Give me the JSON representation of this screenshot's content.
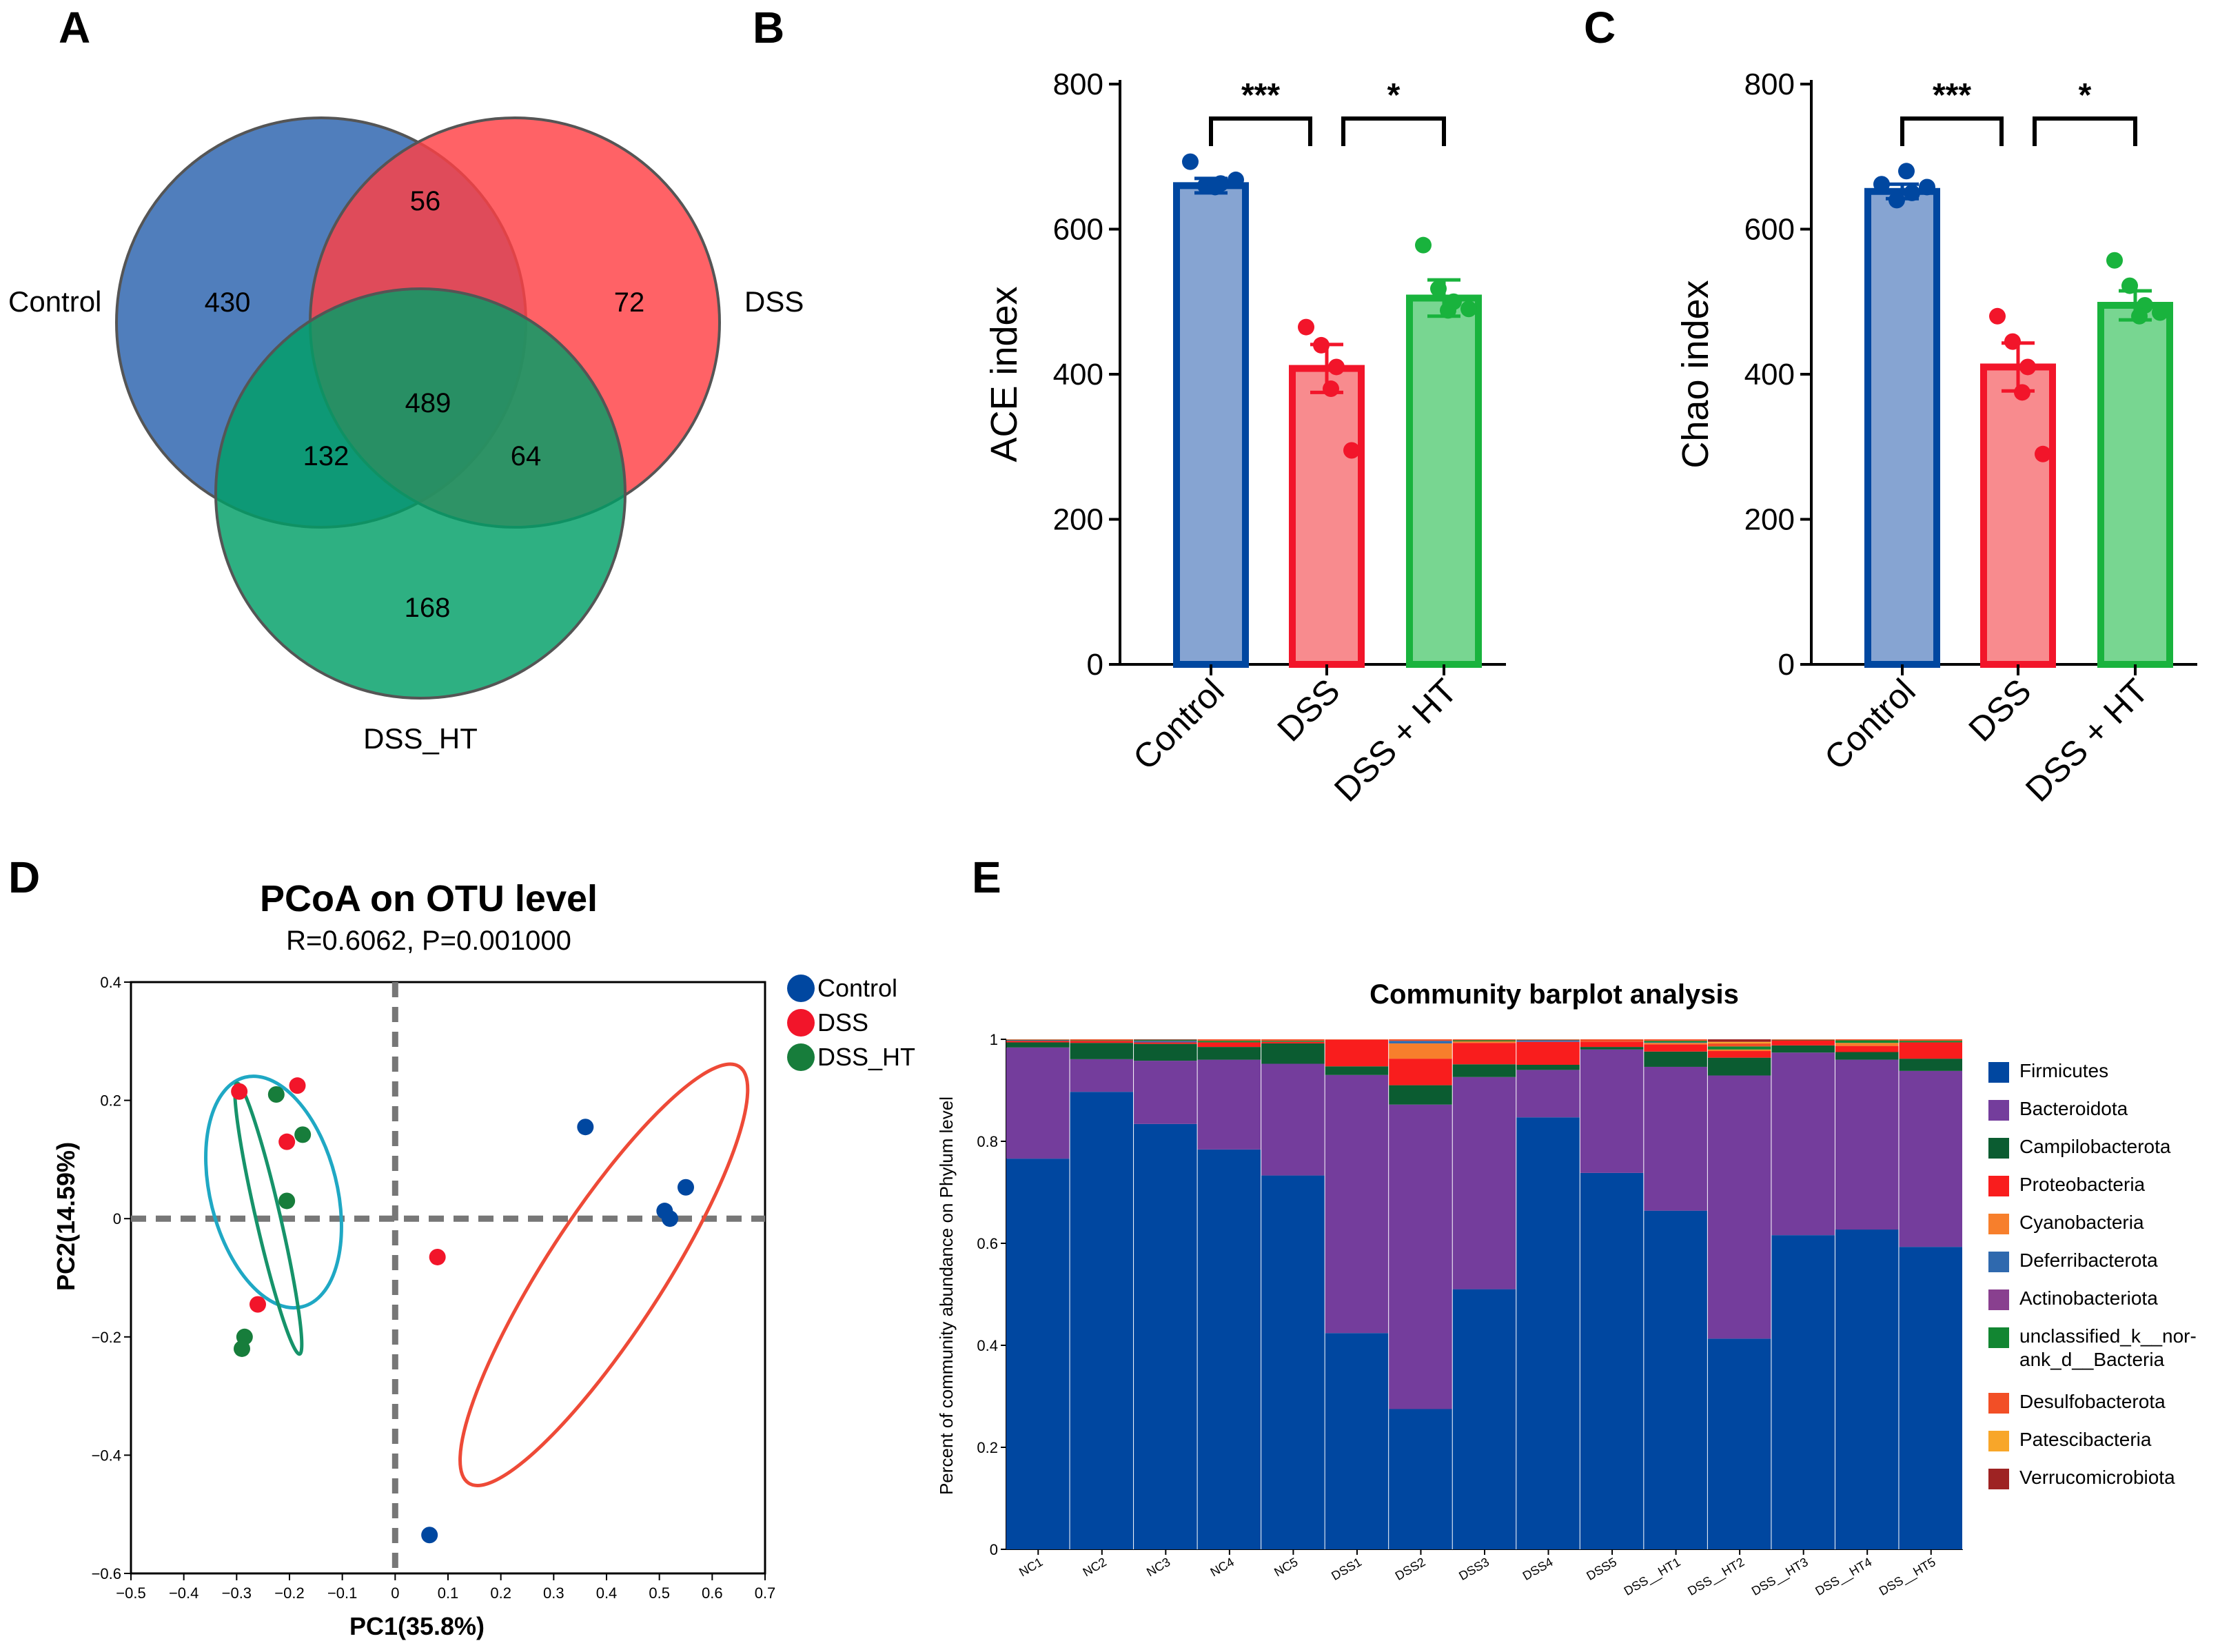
{
  "panel_letters": {
    "a": "A",
    "b": "B",
    "c": "C",
    "d": "D",
    "e": "E"
  },
  "colors": {
    "control": "#0047a0",
    "control_fill": "#86a4d2",
    "dss": "#f2152a",
    "dss_fill": "#f88b8e",
    "ht": "#19b33d",
    "ht_fill": "#78d691",
    "venn_control": "#2a62ad",
    "venn_dss": "#ff3f44",
    "venn_ht": "#009f67",
    "pcoa_control": "#0047a0",
    "pcoa_dss": "#f2152a",
    "pcoa_ht": "#177d3b",
    "ellipse_a": "#1fa8c4",
    "ellipse_b": "#16936a",
    "ellipse_c": "#ee4a37"
  },
  "chart_data": [
    {
      "type": "venn",
      "sets": [
        {
          "label": "Control",
          "only": "430"
        },
        {
          "label": "DSS",
          "only": "72"
        },
        {
          "label": "DSS_HT",
          "only": "168"
        }
      ],
      "regions": {
        "control_dss": "56",
        "control_dsshto": "132",
        "dss_dssht": "64",
        "all": "489"
      }
    },
    {
      "type": "bar",
      "ylabel": "ACE index",
      "ylim": [
        0,
        800
      ],
      "yticks": [
        "0",
        "200",
        "400",
        "600",
        "800"
      ],
      "categories": [
        "Control",
        "DSS",
        "DSS + HT"
      ],
      "values": [
        660,
        408,
        505
      ],
      "errors": [
        10,
        33,
        25
      ],
      "points": [
        [
          693,
          660,
          663,
          668,
          658
        ],
        [
          465,
          440,
          410,
          295,
          380
        ],
        [
          578,
          518,
          500,
          490,
          488
        ]
      ],
      "significance": [
        {
          "from": 0,
          "to": 1,
          "label": "***"
        },
        {
          "from": 1,
          "to": 2,
          "label": "*"
        }
      ]
    },
    {
      "type": "bar",
      "ylabel": "Chao index",
      "ylim": [
        0,
        800
      ],
      "yticks": [
        "0",
        "200",
        "400",
        "600",
        "800"
      ],
      "categories": [
        "Control",
        "DSS",
        "DSS + HT"
      ],
      "values": [
        652,
        410,
        495
      ],
      "errors": [
        10,
        33,
        20
      ],
      "points": [
        [
          662,
          640,
          650,
          658,
          680
        ],
        [
          480,
          445,
          410,
          290,
          375
        ],
        [
          557,
          522,
          495,
          485,
          480
        ]
      ],
      "significance": [
        {
          "from": 0,
          "to": 1,
          "label": "***"
        },
        {
          "from": 1,
          "to": 2,
          "label": "*"
        }
      ]
    },
    {
      "type": "scatter",
      "title": "PCoA on OTU level",
      "subtitle": "R=0.6062, P=0.001000",
      "xlabel": "PC1(35.8%)",
      "ylabel": "PC2(14.59%)",
      "xlim": [
        -0.5,
        0.7
      ],
      "ylim": [
        -0.6,
        0.4
      ],
      "xticks": [
        "−0.5",
        "−0.4",
        "−0.3",
        "−0.2",
        "−0.1",
        "0",
        "0.1",
        "0.2",
        "0.3",
        "0.4",
        "0.5",
        "0.6",
        "0.7"
      ],
      "yticks": [
        "−0.6",
        "−0.4",
        "−0.2",
        "0",
        "0.2",
        "0.4"
      ],
      "legend": [
        "Control",
        "DSS",
        "DSS_HT"
      ],
      "series": [
        {
          "name": "Control",
          "points": [
            [
              0.36,
              0.155
            ],
            [
              0.55,
              0.053
            ],
            [
              0.51,
              0.013
            ],
            [
              0.52,
              0.0
            ],
            [
              0.065,
              -0.535
            ]
          ]
        },
        {
          "name": "DSS",
          "points": [
            [
              -0.295,
              0.215
            ],
            [
              -0.185,
              0.225
            ],
            [
              -0.205,
              0.13
            ],
            [
              -0.26,
              -0.145
            ],
            [
              0.08,
              -0.065
            ]
          ]
        },
        {
          "name": "DSS_HT",
          "points": [
            [
              -0.225,
              0.21
            ],
            [
              -0.175,
              0.142
            ],
            [
              -0.205,
              0.03
            ],
            [
              -0.285,
              -0.2
            ],
            [
              -0.29,
              -0.22
            ]
          ]
        }
      ],
      "ellipses": [
        {
          "cx": -0.23,
          "cy": 0.045,
          "rx": 0.12,
          "ry": 0.2,
          "angle": -14
        },
        {
          "cx": -0.24,
          "cy": 0.0,
          "rx": 0.023,
          "ry": 0.235,
          "angle": -13
        },
        {
          "cx": 0.395,
          "cy": -0.095,
          "rx": 0.11,
          "ry": 0.42,
          "angle": 33
        }
      ]
    },
    {
      "type": "stacked-bar",
      "title": "Community barplot analysis",
      "ylabel": "Percent of community abundance on Phylum level",
      "ylim": [
        0,
        1
      ],
      "yticks": [
        "0",
        "0.2",
        "0.4",
        "0.6",
        "0.8",
        "1"
      ],
      "categories": [
        "NC1",
        "NC2",
        "NC3",
        "NC4",
        "NC5",
        "DSS1",
        "DSS2",
        "DSS3",
        "DSS4",
        "DSS5",
        "DSS__HT1",
        "DSS__HT2",
        "DSS__HT3",
        "DSS__HT4",
        "DSS__HT5"
      ],
      "series": [
        {
          "name": "Firmicutes",
          "color": "#0047a0",
          "values": [
            0.766,
            0.897,
            0.834,
            0.784,
            0.733,
            0.424,
            0.275,
            0.51,
            0.847,
            0.738,
            0.664,
            0.413,
            0.616,
            0.627,
            0.593
          ]
        },
        {
          "name": "Bacteroidota",
          "color": "#743d9c",
          "values": [
            0.218,
            0.064,
            0.124,
            0.176,
            0.219,
            0.506,
            0.597,
            0.416,
            0.093,
            0.242,
            0.282,
            0.516,
            0.358,
            0.333,
            0.345
          ]
        },
        {
          "name": "Campilobacterota",
          "color": "#0b5c31",
          "values": [
            0.01,
            0.032,
            0.033,
            0.025,
            0.04,
            0.017,
            0.038,
            0.025,
            0.01,
            0.005,
            0.03,
            0.035,
            0.014,
            0.015,
            0.024
          ]
        },
        {
          "name": "Proteobacteria",
          "color": "#f91d1d",
          "values": [
            0.003,
            0.004,
            0.003,
            0.009,
            0.003,
            0.052,
            0.052,
            0.042,
            0.045,
            0.01,
            0.014,
            0.013,
            0.01,
            0.012,
            0.032
          ]
        },
        {
          "name": "Cyanobacteria",
          "color": "#f77f2c",
          "values": [
            0.0,
            0.0,
            0.0,
            0.0,
            0.0,
            0.0,
            0.03,
            0.003,
            0.0,
            0.0,
            0.003,
            0.003,
            0.0,
            0.006,
            0.0
          ]
        },
        {
          "name": "Deferribacterota",
          "color": "#2f69ae",
          "values": [
            0.001,
            0.0,
            0.002,
            0.0,
            0.0,
            0.0,
            0.005,
            0.0,
            0.002,
            0.0,
            0.001,
            0.0,
            0.0,
            0.0,
            0.0
          ]
        },
        {
          "name": "Actinobacteriota",
          "color": "#89408f",
          "values": [
            0.0,
            0.0,
            0.001,
            0.0,
            0.0,
            0.0,
            0.0,
            0.0,
            0.001,
            0.0,
            0.0,
            0.0,
            0.0,
            0.0,
            0.0
          ]
        },
        {
          "name": "unclassified_k__nor-ank_d__Bacteria",
          "color": "#128632",
          "values": [
            0.001,
            0.001,
            0.002,
            0.003,
            0.002,
            0.0,
            0.0,
            0.002,
            0.001,
            0.0,
            0.003,
            0.006,
            0.001,
            0.005,
            0.003
          ]
        },
        {
          "name": "Desulfobacterota",
          "color": "#f24f26",
          "values": [
            0.001,
            0.002,
            0.0,
            0.003,
            0.003,
            0.001,
            0.003,
            0.002,
            0.001,
            0.005,
            0.003,
            0.006,
            0.001,
            0.002,
            0.003
          ]
        },
        {
          "name": "Patescibacteria",
          "color": "#f8a629",
          "values": [
            0.0,
            0.0,
            0.0,
            0.0,
            0.0,
            0.0,
            0.0,
            0.0,
            0.0,
            0.0,
            0.0,
            0.003,
            0.0,
            0.0,
            0.0
          ]
        },
        {
          "name": "Verrucomicrobiota",
          "color": "#9e2323",
          "values": [
            0.0,
            0.0,
            0.001,
            0.0,
            0.0,
            0.0,
            0.0,
            0.0,
            0.0,
            0.0,
            0.0,
            0.005,
            0.0,
            0.0,
            0.0
          ]
        }
      ],
      "legend": [
        {
          "line1": "Firmicutes"
        },
        {
          "line1": "Bacteroidota"
        },
        {
          "line1": "Campilobacterota"
        },
        {
          "line1": "Proteobacteria"
        },
        {
          "line1": "Cyanobacteria"
        },
        {
          "line1": "Deferribacterota"
        },
        {
          "line1": "Actinobacteriota"
        },
        {
          "line1": "unclassified_k__nor-",
          "line2": "ank_d__Bacteria"
        },
        {
          "line1": "Desulfobacterota"
        },
        {
          "line1": "Patescibacteria"
        },
        {
          "line1": "Verrucomicrobiota"
        }
      ]
    }
  ]
}
